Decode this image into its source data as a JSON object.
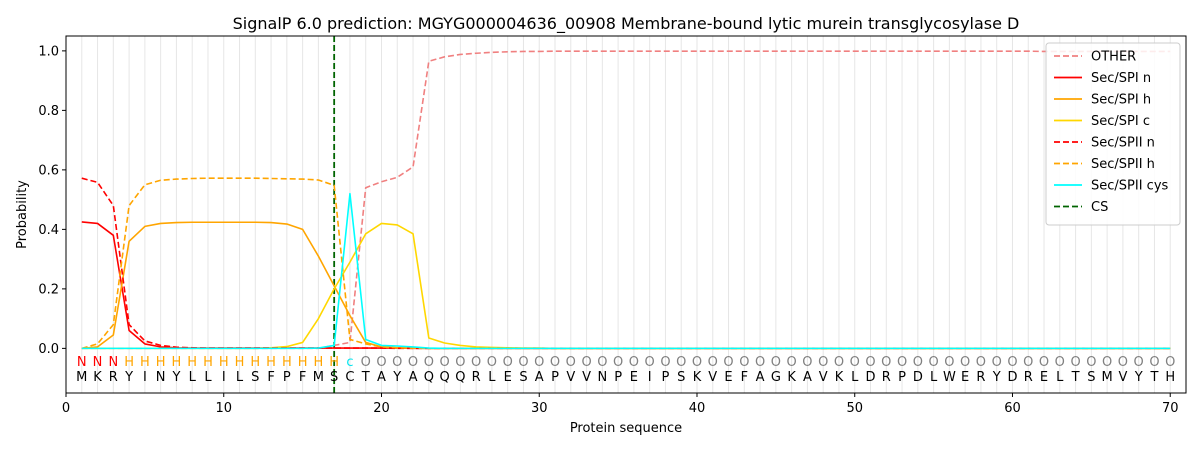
{
  "chart_data": {
    "type": "line",
    "title": "SignalP 6.0 prediction: MGYG000004636_00908 Membrane-bound lytic murein transglycosylase D",
    "xlabel": "Protein sequence",
    "ylabel": "Probability",
    "xlim": [
      0,
      71
    ],
    "ylim": [
      -0.15,
      1.05
    ],
    "xticks": [
      0,
      10,
      20,
      30,
      40,
      50,
      60,
      70
    ],
    "yticks": [
      0.0,
      0.2,
      0.4,
      0.6,
      0.8,
      1.0
    ],
    "grid": "vertical lines at each residue",
    "legend_position": "top-right",
    "cleavage_site": 17,
    "sequence": [
      "M",
      "K",
      "R",
      "Y",
      "I",
      "N",
      "Y",
      "L",
      "L",
      "I",
      "L",
      "S",
      "F",
      "P",
      "F",
      "M",
      "S",
      "C",
      "T",
      "A",
      "Y",
      "A",
      "Q",
      "Q",
      "Q",
      "R",
      "L",
      "E",
      "S",
      "A",
      "P",
      "V",
      "V",
      "N",
      "P",
      "E",
      "I",
      "P",
      "S",
      "K",
      "V",
      "E",
      "F",
      "A",
      "G",
      "K",
      "A",
      "V",
      "K",
      "L",
      "D",
      "R",
      "P",
      "D",
      "L",
      "W",
      "E",
      "R",
      "Y",
      "D",
      "R",
      "E",
      "L",
      "T",
      "S",
      "M",
      "V",
      "Y",
      "T",
      "H"
    ],
    "region_labels": [
      "N",
      "N",
      "N",
      "H",
      "H",
      "H",
      "H",
      "H",
      "H",
      "H",
      "H",
      "H",
      "H",
      "H",
      "H",
      "H",
      "H",
      "c",
      "O",
      "O",
      "O",
      "O",
      "O",
      "O",
      "O",
      "O",
      "O",
      "O",
      "O",
      "O",
      "O",
      "O",
      "O",
      "O",
      "O",
      "O",
      "O",
      "O",
      "O",
      "O",
      "O",
      "O",
      "O",
      "O",
      "O",
      "O",
      "O",
      "O",
      "O",
      "O",
      "O",
      "O",
      "O",
      "O",
      "O",
      "O",
      "O",
      "O",
      "O",
      "O",
      "O",
      "O",
      "O",
      "O",
      "O",
      "O",
      "O",
      "O",
      "O",
      "O"
    ],
    "region_colors": {
      "N": "#ff0000",
      "H": "#ffa500",
      "c": "#00e5ee",
      "O": "#808080"
    },
    "series": [
      {
        "name": "OTHER",
        "color": "#f08080",
        "dash": "dashed",
        "values": [
          0.0,
          0.0,
          0.0,
          0.0,
          0.0,
          0.0,
          0.0,
          0.0,
          0.0,
          0.0,
          0.0,
          0.0,
          0.0,
          0.0,
          0.0,
          0.0,
          0.01,
          0.02,
          0.54,
          0.56,
          0.575,
          0.61,
          0.965,
          0.98,
          0.988,
          0.992,
          0.995,
          0.997,
          0.998,
          0.998,
          0.999,
          0.999,
          0.999,
          0.999,
          0.999,
          0.999,
          0.999,
          0.999,
          0.999,
          0.999,
          0.999,
          0.999,
          0.999,
          0.999,
          0.999,
          0.999,
          0.999,
          0.999,
          0.999,
          0.999,
          0.999,
          0.999,
          0.999,
          0.999,
          0.999,
          0.999,
          0.999,
          0.999,
          0.999,
          0.999,
          0.999,
          0.998,
          0.998,
          0.998,
          0.998,
          0.998,
          0.998,
          0.998,
          0.998,
          0.998
        ]
      },
      {
        "name": "Sec/SPI n",
        "color": "#ff0000",
        "dash": "solid",
        "values": [
          0.425,
          0.42,
          0.38,
          0.06,
          0.015,
          0.005,
          0.002,
          0.001,
          0.001,
          0.001,
          0.001,
          0.001,
          0.001,
          0.001,
          0.001,
          0.001,
          0.001,
          0.001,
          0.001,
          0.001,
          0.001,
          0.0,
          0.0,
          0.0,
          0.0,
          0.0,
          0.0,
          0.0,
          0.0,
          0.0,
          0.0,
          0.0,
          0.0,
          0.0,
          0.0,
          0.0,
          0.0,
          0.0,
          0.0,
          0.0,
          0.0,
          0.0,
          0.0,
          0.0,
          0.0,
          0.0,
          0.0,
          0.0,
          0.0,
          0.0,
          0.0,
          0.0,
          0.0,
          0.0,
          0.0,
          0.0,
          0.0,
          0.0,
          0.0,
          0.0,
          0.0,
          0.0,
          0.0,
          0.0,
          0.0,
          0.0,
          0.0,
          0.0,
          0.0,
          0.0
        ]
      },
      {
        "name": "Sec/SPI h",
        "color": "#ffa500",
        "dash": "solid",
        "values": [
          0.0,
          0.005,
          0.045,
          0.36,
          0.41,
          0.42,
          0.423,
          0.424,
          0.424,
          0.424,
          0.424,
          0.424,
          0.423,
          0.418,
          0.4,
          0.31,
          0.21,
          0.11,
          0.02,
          0.005,
          0.002,
          0.001,
          0.0,
          0.0,
          0.0,
          0.0,
          0.0,
          0.0,
          0.0,
          0.0,
          0.0,
          0.0,
          0.0,
          0.0,
          0.0,
          0.0,
          0.0,
          0.0,
          0.0,
          0.0,
          0.0,
          0.0,
          0.0,
          0.0,
          0.0,
          0.0,
          0.0,
          0.0,
          0.0,
          0.0,
          0.0,
          0.0,
          0.0,
          0.0,
          0.0,
          0.0,
          0.0,
          0.0,
          0.0,
          0.0,
          0.0,
          0.0,
          0.0,
          0.0,
          0.0,
          0.0,
          0.0,
          0.0,
          0.0,
          0.0
        ]
      },
      {
        "name": "Sec/SPI c",
        "color": "#ffd700",
        "dash": "solid",
        "values": [
          0.0,
          0.0,
          0.0,
          0.0,
          0.0,
          0.0,
          0.0,
          0.0,
          0.0,
          0.0,
          0.0,
          0.0,
          0.002,
          0.006,
          0.02,
          0.1,
          0.2,
          0.29,
          0.385,
          0.42,
          0.415,
          0.385,
          0.035,
          0.018,
          0.01,
          0.005,
          0.003,
          0.002,
          0.001,
          0.001,
          0.0,
          0.0,
          0.0,
          0.0,
          0.0,
          0.0,
          0.0,
          0.0,
          0.0,
          0.0,
          0.0,
          0.0,
          0.0,
          0.0,
          0.0,
          0.0,
          0.0,
          0.0,
          0.0,
          0.0,
          0.0,
          0.0,
          0.0,
          0.0,
          0.0,
          0.0,
          0.0,
          0.0,
          0.0,
          0.0,
          0.0,
          0.0,
          0.0,
          0.0,
          0.0,
          0.0,
          0.0,
          0.0,
          0.0,
          0.0
        ]
      },
      {
        "name": "Sec/SPII n",
        "color": "#ff0000",
        "dash": "dashed",
        "values": [
          0.572,
          0.558,
          0.48,
          0.08,
          0.025,
          0.01,
          0.004,
          0.002,
          0.001,
          0.001,
          0.001,
          0.001,
          0.001,
          0.001,
          0.001,
          0.001,
          0.001,
          0.001,
          0.001,
          0.001,
          0.0,
          0.0,
          0.0,
          0.0,
          0.0,
          0.0,
          0.0,
          0.0,
          0.0,
          0.0,
          0.0,
          0.0,
          0.0,
          0.0,
          0.0,
          0.0,
          0.0,
          0.0,
          0.0,
          0.0,
          0.0,
          0.0,
          0.0,
          0.0,
          0.0,
          0.0,
          0.0,
          0.0,
          0.0,
          0.0,
          0.0,
          0.0,
          0.0,
          0.0,
          0.0,
          0.0,
          0.0,
          0.0,
          0.0,
          0.0,
          0.0,
          0.0,
          0.0,
          0.0,
          0.0,
          0.0,
          0.0,
          0.0,
          0.0,
          0.0
        ]
      },
      {
        "name": "Sec/SPII h",
        "color": "#ffa500",
        "dash": "dashed",
        "values": [
          0.0,
          0.015,
          0.08,
          0.48,
          0.55,
          0.565,
          0.569,
          0.571,
          0.572,
          0.572,
          0.572,
          0.572,
          0.571,
          0.57,
          0.569,
          0.566,
          0.548,
          0.03,
          0.015,
          0.005,
          0.002,
          0.001,
          0.0,
          0.0,
          0.0,
          0.0,
          0.0,
          0.0,
          0.0,
          0.0,
          0.0,
          0.0,
          0.0,
          0.0,
          0.0,
          0.0,
          0.0,
          0.0,
          0.0,
          0.0,
          0.0,
          0.0,
          0.0,
          0.0,
          0.0,
          0.0,
          0.0,
          0.0,
          0.0,
          0.0,
          0.0,
          0.0,
          0.0,
          0.0,
          0.0,
          0.0,
          0.0,
          0.0,
          0.0,
          0.0,
          0.0,
          0.0,
          0.0,
          0.0,
          0.0,
          0.0,
          0.0,
          0.0,
          0.0,
          0.0
        ]
      },
      {
        "name": "Sec/SPII cys",
        "color": "#00ffff",
        "dash": "solid",
        "values": [
          0.0,
          0.0,
          0.0,
          0.0,
          0.0,
          0.0,
          0.0,
          0.0,
          0.0,
          0.0,
          0.0,
          0.0,
          0.0,
          0.0,
          0.0,
          0.001,
          0.01,
          0.52,
          0.03,
          0.01,
          0.008,
          0.005,
          0.001,
          0.0,
          0.0,
          0.0,
          0.0,
          0.0,
          0.0,
          0.0,
          0.0,
          0.0,
          0.0,
          0.0,
          0.0,
          0.0,
          0.0,
          0.0,
          0.0,
          0.0,
          0.0,
          0.0,
          0.0,
          0.0,
          0.0,
          0.0,
          0.0,
          0.0,
          0.0,
          0.0,
          0.0,
          0.0,
          0.0,
          0.0,
          0.0,
          0.0,
          0.0,
          0.0,
          0.0,
          0.0,
          0.0,
          0.0,
          0.0,
          0.0,
          0.0,
          0.0,
          0.0,
          0.0,
          0.0,
          0.0
        ]
      }
    ],
    "legend": [
      {
        "name": "OTHER",
        "color": "#f08080",
        "dash": "dashed"
      },
      {
        "name": "Sec/SPI n",
        "color": "#ff0000",
        "dash": "solid"
      },
      {
        "name": "Sec/SPI h",
        "color": "#ffa500",
        "dash": "solid"
      },
      {
        "name": "Sec/SPI c",
        "color": "#ffd700",
        "dash": "solid"
      },
      {
        "name": "Sec/SPII n",
        "color": "#ff0000",
        "dash": "dashed"
      },
      {
        "name": "Sec/SPII h",
        "color": "#ffa500",
        "dash": "dashed"
      },
      {
        "name": "Sec/SPII cys",
        "color": "#00ffff",
        "dash": "solid"
      },
      {
        "name": "CS",
        "color": "#006400",
        "dash": "dashed"
      }
    ]
  }
}
